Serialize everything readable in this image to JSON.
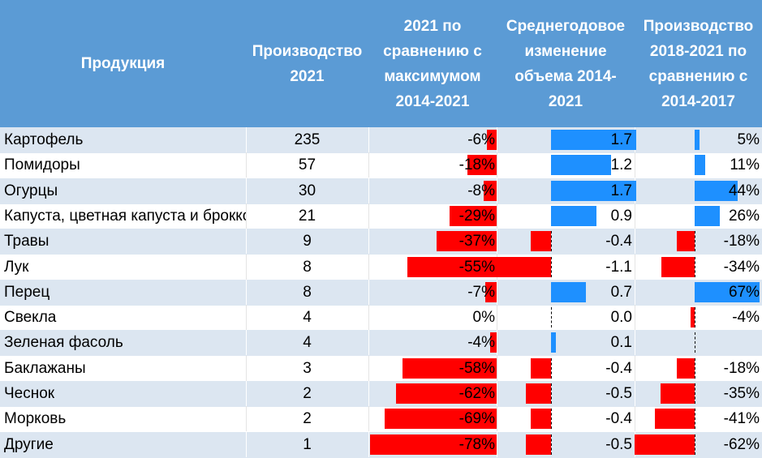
{
  "colors": {
    "header_bg": "#5b9bd5",
    "header_text": "#ffffff",
    "band": "#dce6f1",
    "neg_bar": "#ff0000",
    "pos_bar": "#1e90ff"
  },
  "headers": {
    "product": "Продукция",
    "production": "Производство\n2021",
    "vs_max": "2021 по\nсравнению с\nмаксимумом\n2014-2021",
    "avg_change": "Среднегодовое\nизменение\nобъема 2014-\n2021",
    "period": "Производство\n2018-2021 по\nсравнению с\n2014-2017"
  },
  "chart_data": {
    "type": "table",
    "columns": [
      "Продукция",
      "Производство 2021",
      "2021 по сравнению с максимумом 2014-2021",
      "Среднегодовое изменение объема 2014-2021",
      "Производство 2018-2021 по сравнению с 2014-2017"
    ],
    "rows": [
      {
        "product": "Картофель",
        "production": "235",
        "vs_max": "-6%",
        "avg_change": "1.7",
        "period": "5%"
      },
      {
        "product": "Помидоры",
        "production": "57",
        "vs_max": "-18%",
        "avg_change": "1.2",
        "period": "11%"
      },
      {
        "product": "Огурцы",
        "production": "30",
        "vs_max": "-8%",
        "avg_change": "1.7",
        "period": "44%"
      },
      {
        "product": "Капуста, цветная капуста и брокколи",
        "production": "21",
        "vs_max": "-29%",
        "avg_change": "0.9",
        "period": "26%"
      },
      {
        "product": "Травы",
        "production": "9",
        "vs_max": "-37%",
        "avg_change": "-0.4",
        "period": "-18%"
      },
      {
        "product": "Лук",
        "production": "8",
        "vs_max": "-55%",
        "avg_change": "-1.1",
        "period": "-34%"
      },
      {
        "product": "Перец",
        "production": "8",
        "vs_max": "-7%",
        "avg_change": "0.7",
        "period": "67%"
      },
      {
        "product": "Свекла",
        "production": "4",
        "vs_max": "0%",
        "avg_change": "0.0",
        "period": "-4%"
      },
      {
        "product": "Зеленая фасоль",
        "production": "4",
        "vs_max": "-4%",
        "avg_change": "0.1",
        "period": ""
      },
      {
        "product": "Баклажаны",
        "production": "3",
        "vs_max": "-58%",
        "avg_change": "-0.4",
        "period": "-18%"
      },
      {
        "product": "Чеснок",
        "production": "2",
        "vs_max": "-62%",
        "avg_change": "-0.5",
        "period": "-35%"
      },
      {
        "product": "Морковь",
        "production": "2",
        "vs_max": "-69%",
        "avg_change": "-0.4",
        "period": "-41%"
      },
      {
        "product": "Другие",
        "production": "1",
        "vs_max": "-78%",
        "avg_change": "-0.5",
        "period": "-62%"
      }
    ]
  }
}
